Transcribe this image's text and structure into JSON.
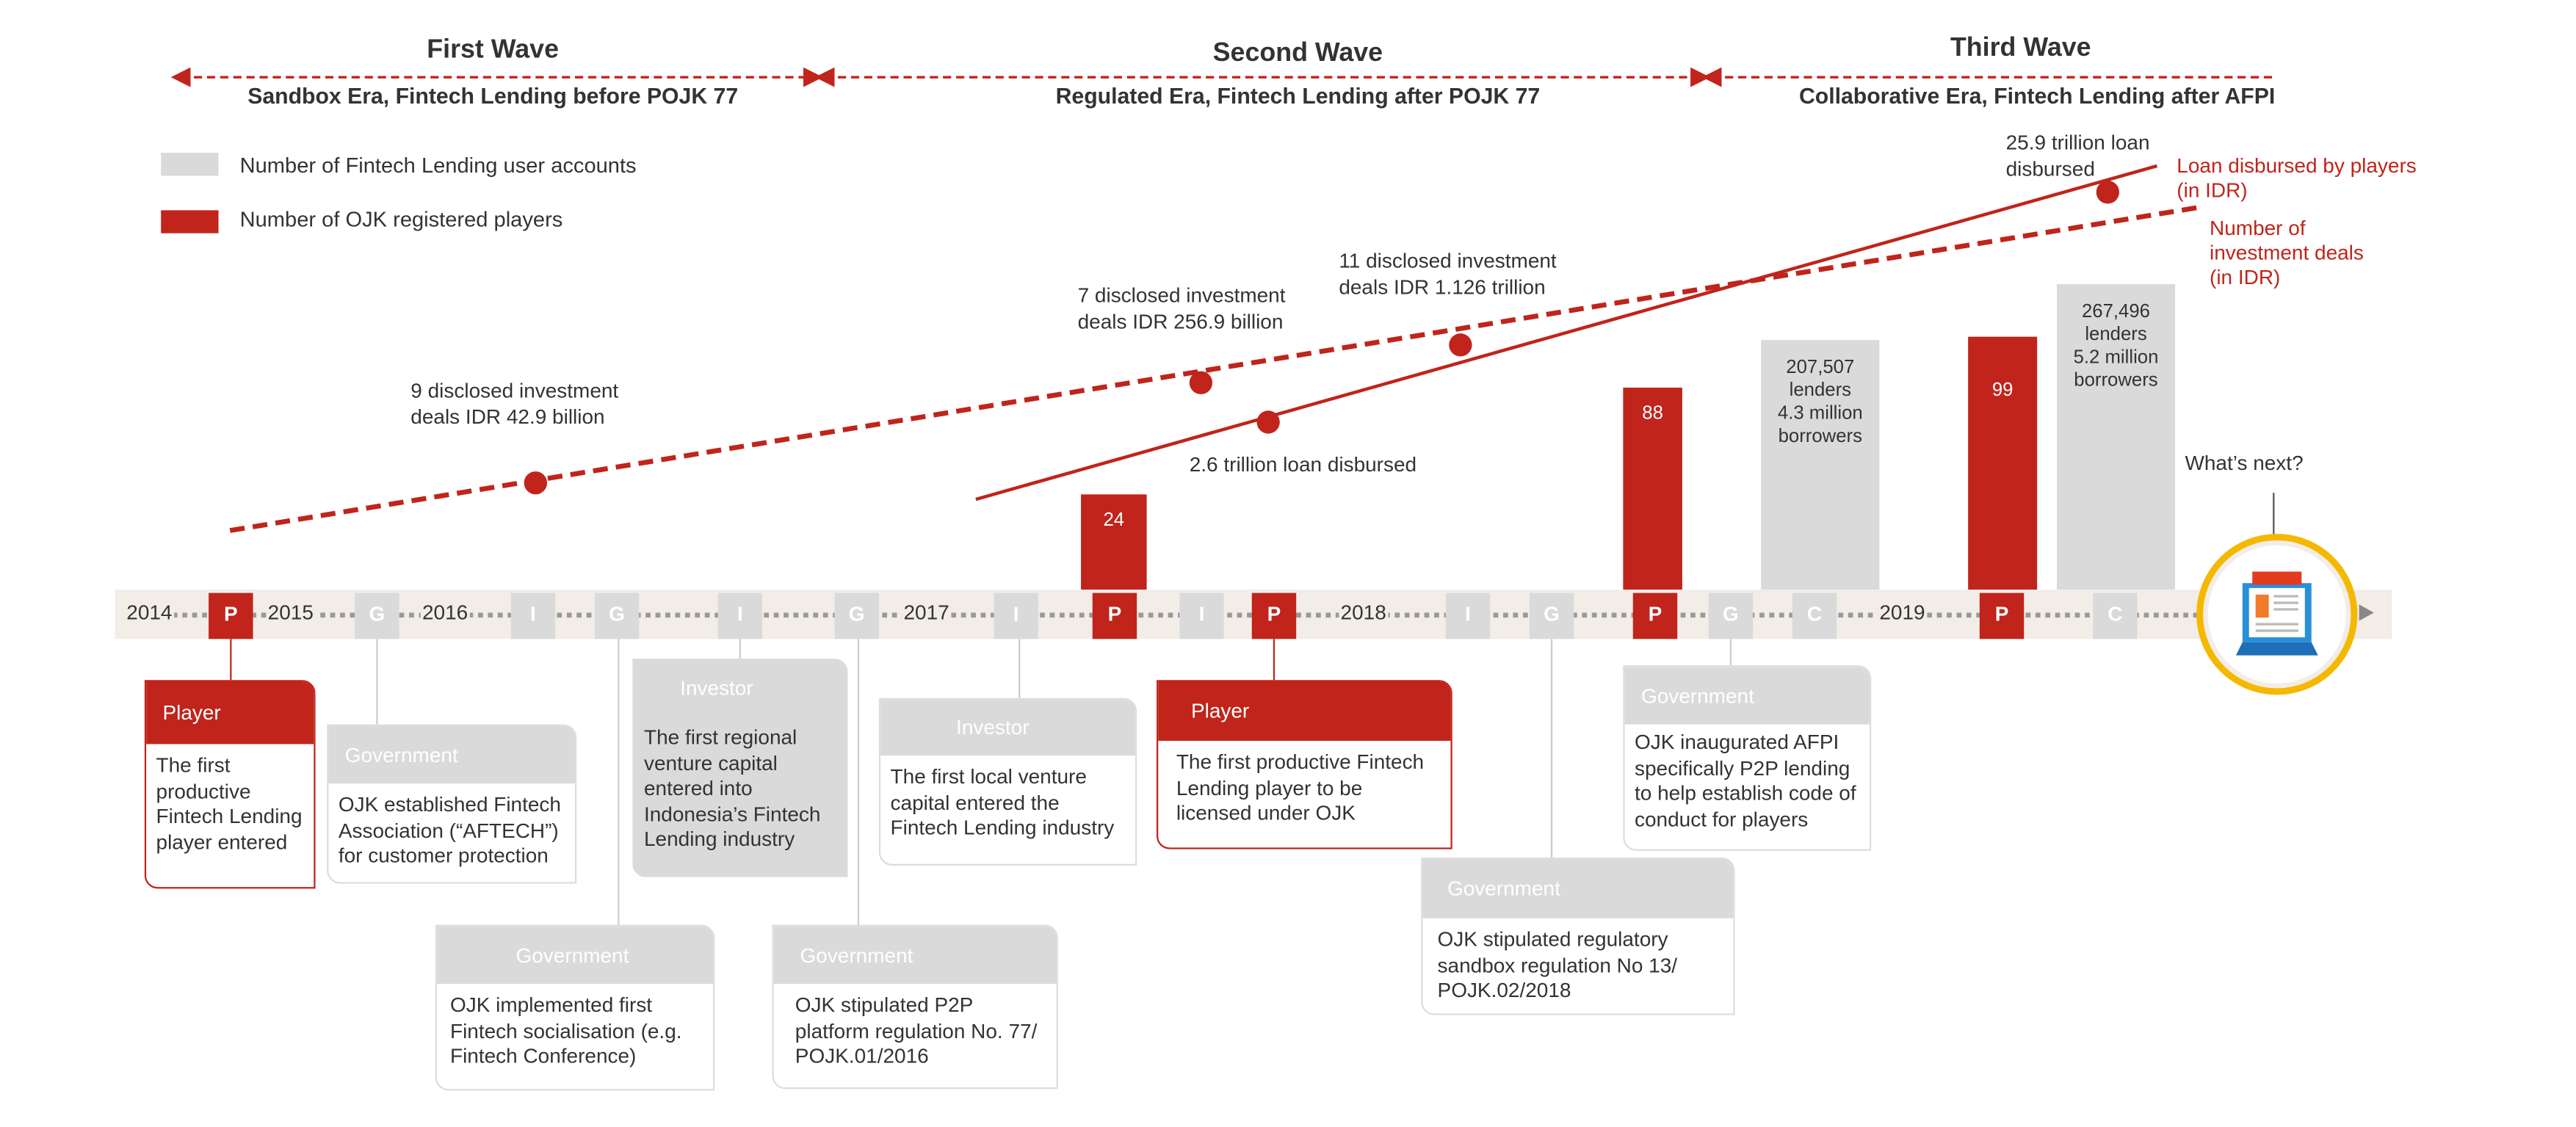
{
  "waves": [
    {
      "title": "First Wave",
      "subtitle": "Sandbox Era, Fintech Lending before POJK 77"
    },
    {
      "title": "Second Wave",
      "subtitle": "Regulated Era, Fintech Lending after POJK 77"
    },
    {
      "title": "Third Wave",
      "subtitle": "Collaborative Era, Fintech Lending after AFPI"
    }
  ],
  "legend": {
    "users": "Number of Fintech Lending user accounts",
    "players": "Number of OJK registered players"
  },
  "series_labels": {
    "loan": "Loan disbursed by players (in IDR)",
    "deals": "Number of investment deals (in IDR)"
  },
  "annotations": {
    "deals_2015": "9 disclosed  investment deals IDR 42.9 billion",
    "deals_2017": "7 disclosed investment deals IDR 256.9 billion",
    "deals_2018": "11 disclosed investment deals IDR 1.126 trillion",
    "loan_2017": "2.6 trillion loan disbursed",
    "loan_2019": "25.9 trillion loan disbursed",
    "whats_next": "What’s next?"
  },
  "years": [
    "2014",
    "2015",
    "2016",
    "2017",
    "2018",
    "2019"
  ],
  "markers": [
    "P",
    "G",
    "I",
    "G",
    "I",
    "G",
    "I",
    "P",
    "I",
    "P",
    "I",
    "G",
    "P",
    "G",
    "C",
    "P",
    "C"
  ],
  "bars": {
    "players": [
      "24",
      "88",
      "99"
    ],
    "users": [
      {
        "lenders": "207,507",
        "lenders_label": "lenders",
        "borrowers": "4.3 million",
        "borrowers_label": "borrowers"
      },
      {
        "lenders": "267,496",
        "lenders_label": "lenders",
        "borrowers": "5.2 million",
        "borrowers_label": "borrowers"
      }
    ]
  },
  "cards": [
    {
      "type": "Player",
      "text": "The first productive Fintech Lending player entered"
    },
    {
      "type": "Government",
      "text": "OJK established Fintech Association (“AFTECH”) for customer protection"
    },
    {
      "type": "Investor",
      "text": "The first regional venture capital entered into Indonesia’s Fintech Lending industry"
    },
    {
      "type": "Investor",
      "text": "The first local venture capital entered the Fintech Lending industry"
    },
    {
      "type": "Player",
      "text": "The first productive Fintech Lending player to be licensed under OJK"
    },
    {
      "type": "Government",
      "text": "OJK implemented first Fintech socialisation (e.g. Fintech Conference)"
    },
    {
      "type": "Government",
      "text": "OJK stipulated P2P platform regulation No. 77/ POJK.01/2016"
    },
    {
      "type": "Government",
      "text": "OJK stipulated regulatory sandbox regulation No 13/ POJK.02/2018"
    },
    {
      "type": "Government",
      "text": "OJK inaugurated AFPI specifically P2P lending to help establish code of conduct for players"
    }
  ],
  "icons": {
    "future": "laptop-document-icon"
  },
  "colors": {
    "red": "#c0241b",
    "gray": "#dadada",
    "band": "#f3ede8",
    "ring": "#f5b800"
  }
}
